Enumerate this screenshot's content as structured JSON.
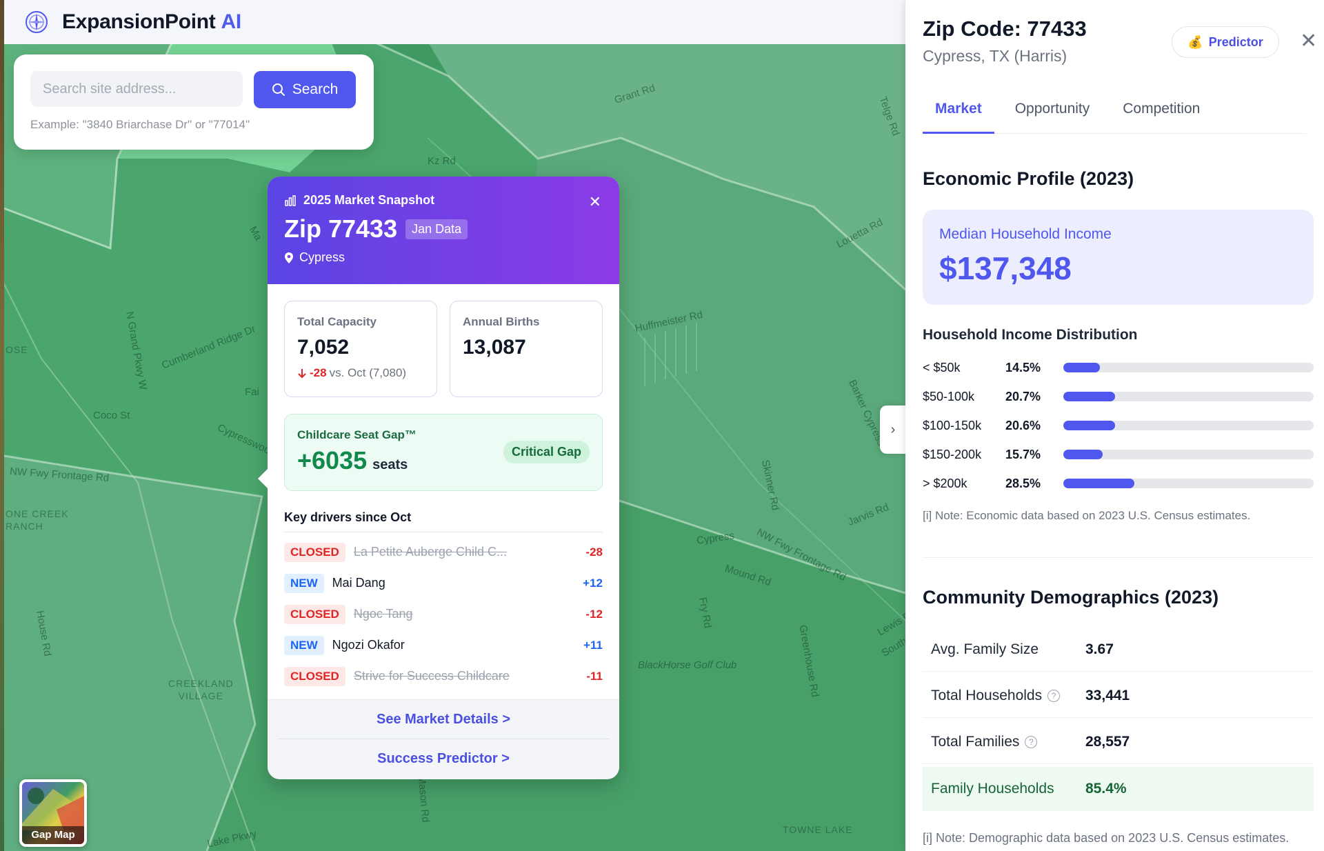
{
  "app": {
    "brand_name": "ExpansionPoint",
    "brand_accent": "AI",
    "logo_icon": "compass-icon"
  },
  "search": {
    "placeholder": "Search site address...",
    "button_label": "Search",
    "hint": "Example: \"3840 Briarchase Dr\" or \"77014\""
  },
  "map": {
    "roads": [
      "Grant Rd",
      "Kz Rd",
      "Telge Rd",
      "Louetta Rd",
      "Huffmeister Rd",
      "N Grand Pkwy W",
      "Cumberland Ridge Dr",
      "Coco St",
      "Cypresswood",
      "NW Fwy Frontage Rd",
      "Barker Cypress",
      "Skinner Rd",
      "Jarvis Rd",
      "Cypress",
      "NW Fwy Frontage Rd",
      "Mound Rd",
      "Fry Rd",
      "House Rd",
      "Greenhouse Rd",
      "Lewis Dr",
      "South Dr",
      "Mason Rd",
      "Lake Pkwy",
      "BlackHorse Golf Club",
      "Fai",
      "Ma"
    ],
    "areas": [
      "CREEKLAND\nVILLAGE",
      "ONE CREEK\nRANCH",
      "TOWNE LAKE",
      "OSE"
    ]
  },
  "snapshot": {
    "title": "2025 Market Snapshot",
    "zip": "Zip 77433",
    "badge": "Jan Data",
    "city": "Cypress",
    "capacity_label": "Total Capacity",
    "capacity_value": "7,052",
    "capacity_change": "-28",
    "capacity_change_suffix": "vs. Oct (7,080)",
    "births_label": "Annual Births",
    "births_value": "13,087",
    "gap_label": "Childcare Seat Gap™",
    "gap_value": "+6035",
    "gap_unit": "seats",
    "gap_badge": "Critical Gap",
    "drivers_title": "Key drivers since Oct",
    "drivers": [
      {
        "status": "CLOSED",
        "name": "La Petite Auberge Child C...",
        "delta": "-28"
      },
      {
        "status": "NEW",
        "name": "Mai Dang",
        "delta": "+12"
      },
      {
        "status": "CLOSED",
        "name": "Ngoc Tang",
        "delta": "-12"
      },
      {
        "status": "NEW",
        "name": "Ngozi Okafor",
        "delta": "+11"
      },
      {
        "status": "CLOSED",
        "name": "Strive for Success Childcare",
        "delta": "-11"
      }
    ],
    "link_details": "See Market Details >",
    "link_predictor": "Success Predictor >"
  },
  "gap_map": {
    "label": "Gap Map"
  },
  "panel": {
    "title": "Zip Code: 77433",
    "subtitle": "Cypress, TX (Harris)",
    "predictor_label": "Predictor",
    "predictor_icon": "money-bag-icon",
    "tabs": [
      "Market",
      "Opportunity",
      "Competition"
    ],
    "active_tab": "Market",
    "economic_title": "Economic Profile (2023)",
    "income_label": "Median Household Income",
    "income_value": "$137,348",
    "dist_title": "Household Income Distribution",
    "distribution": [
      {
        "label": "< $50k",
        "pct_text": "14.5%",
        "pct": 14.5
      },
      {
        "label": "$50-100k",
        "pct_text": "20.7%",
        "pct": 20.7
      },
      {
        "label": "$100-150k",
        "pct_text": "20.6%",
        "pct": 20.6
      },
      {
        "label": "$150-200k",
        "pct_text": "15.7%",
        "pct": 15.7
      },
      {
        "label": "> $200k",
        "pct_text": "28.5%",
        "pct": 28.5
      }
    ],
    "econ_note": "[i] Note: Economic data based on 2023 U.S. Census estimates.",
    "demo_title": "Community Demographics (2023)",
    "demographics": [
      {
        "label": "Avg. Family Size",
        "value": "3.67"
      },
      {
        "label": "Total Households",
        "value": "33,441"
      },
      {
        "label": "Total Families",
        "value": "28,557"
      },
      {
        "label": "Family Households",
        "value": "85.4%"
      }
    ],
    "demo_note": "[i] Note: Demographic data based on 2023 U.S. Census estimates."
  },
  "colors": {
    "accent": "#4f57ee",
    "map_green": "#3f9c63",
    "critical": "#0f8a4a",
    "negative": "#e02424",
    "new": "#1c64f2"
  }
}
